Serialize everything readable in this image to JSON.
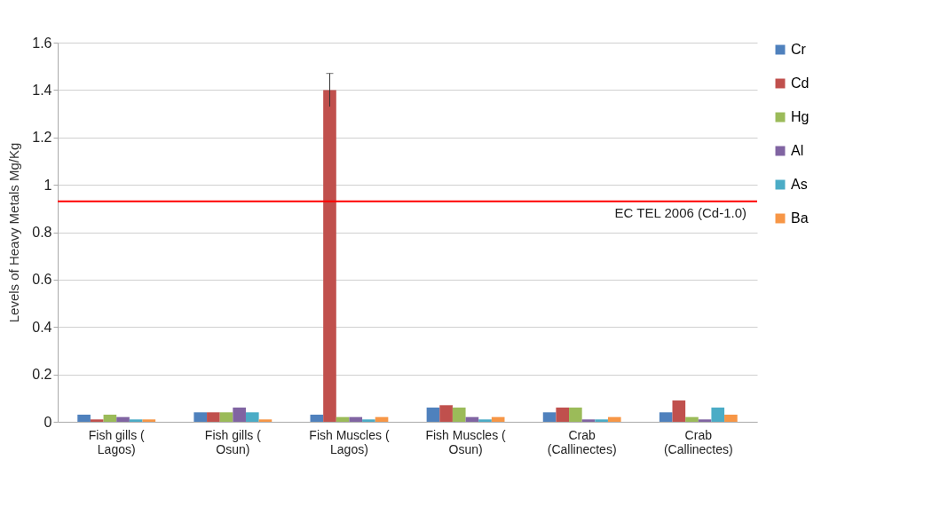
{
  "chart_data": {
    "type": "bar",
    "ylabel": "Levels of  Heavy Metals Mg/Kg",
    "categories": [
      "Fish gills ( Lagos)",
      "Fish gills ( Osun)",
      "Fish Muscles ( Lagos)",
      "Fish Muscles ( Osun)",
      "Crab (Callinectes)",
      "Crab (Callinectes)"
    ],
    "series": [
      {
        "name": "Cr",
        "color": "#4f81bd",
        "values": [
          0.03,
          0.04,
          0.03,
          0.06,
          0.04,
          0.04
        ]
      },
      {
        "name": "Cd",
        "color": "#c0504d",
        "values": [
          0.01,
          0.04,
          1.4,
          0.07,
          0.06,
          0.09
        ],
        "errors": [
          null,
          null,
          0.07,
          null,
          null,
          null
        ]
      },
      {
        "name": "Hg",
        "color": "#9bbb59",
        "values": [
          0.03,
          0.04,
          0.02,
          0.06,
          0.06,
          0.02
        ]
      },
      {
        "name": "Al",
        "color": "#8064a2",
        "values": [
          0.02,
          0.06,
          0.02,
          0.02,
          0.01,
          0.01
        ]
      },
      {
        "name": "As",
        "color": "#4bacc6",
        "values": [
          0.01,
          0.04,
          0.01,
          0.01,
          0.01,
          0.06
        ]
      },
      {
        "name": "Ba",
        "color": "#f79646",
        "values": [
          0.01,
          0.01,
          0.02,
          0.02,
          0.02,
          0.03
        ]
      }
    ],
    "ylim": [
      0,
      1.6
    ],
    "yticks": [
      0,
      0.2,
      0.4,
      0.6,
      0.8,
      1,
      1.2,
      1.4,
      1.6
    ],
    "grid": "y",
    "legend": "right",
    "ref_lines": [
      {
        "axis": "y",
        "value": 0.93,
        "label": "EC TEL 2006 (Cd-1.0)",
        "color": "#ff0000"
      }
    ]
  }
}
